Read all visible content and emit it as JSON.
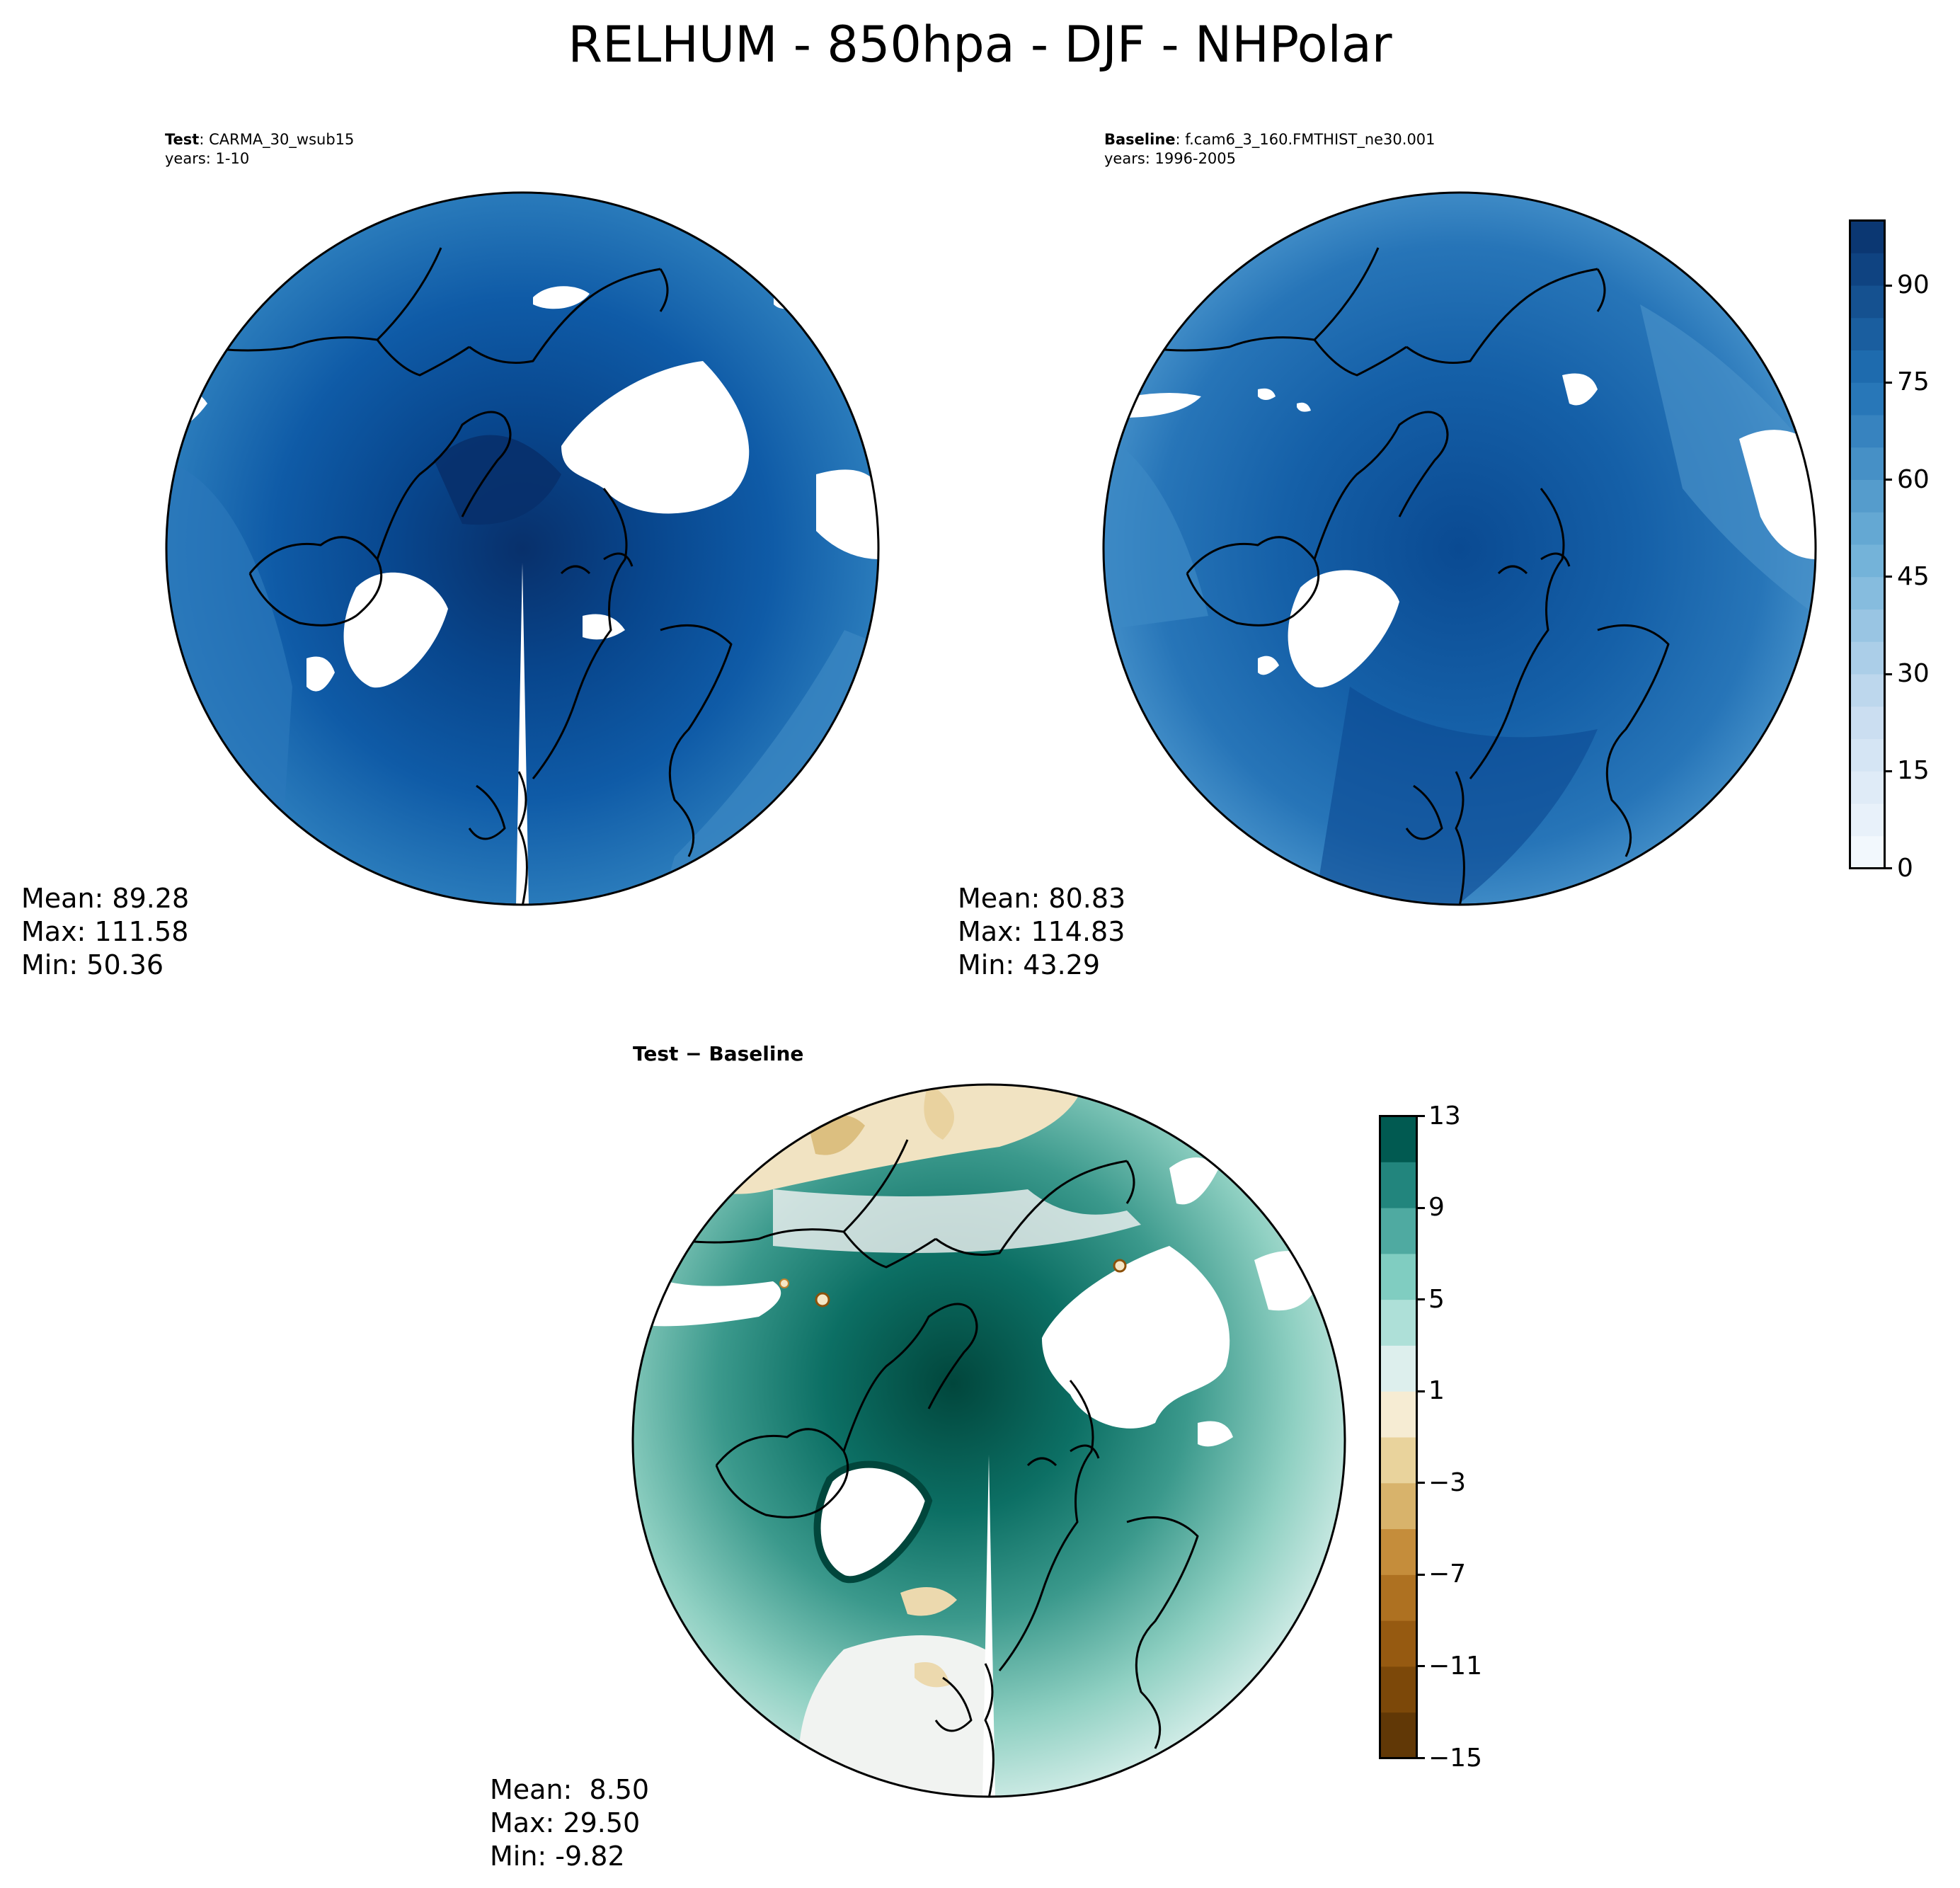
{
  "title": "RELHUM - 850hpa - DJF - NHPolar",
  "panels": {
    "test": {
      "label_bold": "Test",
      "label_case": ": CARMA_30_wsub15",
      "years": "years: 1-10",
      "mean": "Mean: 89.28",
      "max": "Max: 111.58",
      "min": "Min: 50.36"
    },
    "baseline": {
      "label_bold": "Baseline",
      "label_case": ": f.cam6_3_160.FMTHIST_ne30.001",
      "years": "years: 1996-2005",
      "mean": "Mean: 80.83",
      "max": "Max: 114.83",
      "min": "Min: 43.29"
    },
    "difference": {
      "title": "Test − Baseline",
      "mean": "Mean:  8.50",
      "max": "Max: 29.50",
      "min": "Min: -9.82"
    }
  },
  "colorbars": {
    "main": {
      "ticks": [
        "0",
        "15",
        "30",
        "45",
        "60",
        "75",
        "90"
      ]
    },
    "diff": {
      "ticks": [
        "−15",
        "−11",
        "−7",
        "−3",
        "1",
        "5",
        "9",
        "13"
      ]
    }
  },
  "colors": {
    "blues_dark": "#08306b",
    "blues_mid": "#1a5fa8",
    "blues_light": "#4a92c9",
    "brbg_dark_teal": "#01463c",
    "brbg_light": "#f4f4f4",
    "brbg_brown": "#5a3005"
  },
  "chart_data": [
    {
      "type": "heatmap",
      "projection": "north-polar-stereographic",
      "variable": "RELHUM",
      "panel": "test",
      "clim": [
        0,
        100
      ],
      "colormap": "Blues",
      "colorbar_ticks": [
        0,
        15,
        30,
        45,
        60,
        75,
        90
      ],
      "stats": {
        "mean": 89.28,
        "max": 111.58,
        "min": 50.36
      }
    },
    {
      "type": "heatmap",
      "projection": "north-polar-stereographic",
      "variable": "RELHUM",
      "panel": "baseline",
      "clim": [
        0,
        100
      ],
      "colormap": "Blues",
      "colorbar_ticks": [
        0,
        15,
        30,
        45,
        60,
        75,
        90
      ],
      "stats": {
        "mean": 80.83,
        "max": 114.83,
        "min": 43.29
      }
    },
    {
      "type": "heatmap",
      "projection": "north-polar-stereographic",
      "variable": "RELHUM",
      "panel": "difference",
      "clim": [
        -15,
        13
      ],
      "colormap": "BrBG",
      "colorbar_ticks": [
        -15,
        -11,
        -7,
        -3,
        1,
        5,
        9,
        13
      ],
      "stats": {
        "mean": 8.5,
        "max": 29.5,
        "min": -9.82
      }
    }
  ]
}
